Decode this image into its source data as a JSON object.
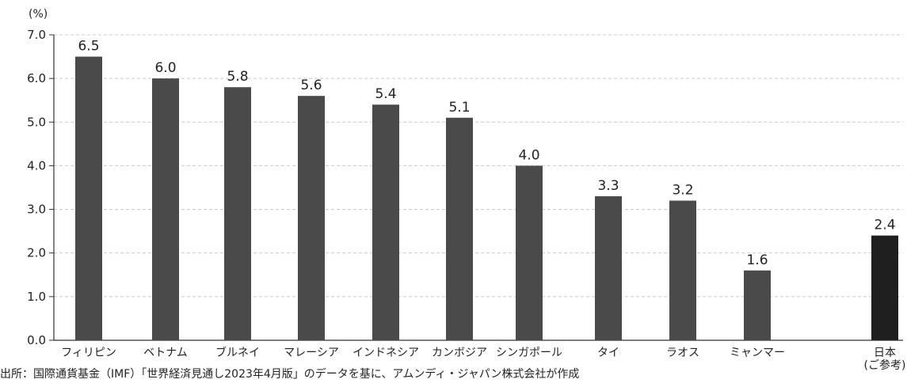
{
  "chart_data": {
    "type": "bar",
    "y_unit_label": "(%)",
    "categories": [
      "フィリピン",
      "ベトナム",
      "ブルネイ",
      "マレーシア",
      "インドネシア",
      "カンボジア",
      "シンガポール",
      "タイ",
      "ラオス",
      "ミャンマー",
      "日本\n(ご参考)"
    ],
    "values": [
      6.5,
      6.0,
      5.8,
      5.6,
      5.4,
      5.1,
      4.0,
      3.3,
      3.2,
      1.6,
      2.4
    ],
    "data_labels": [
      "6.5",
      "6.0",
      "5.8",
      "5.6",
      "5.4",
      "5.1",
      "4.0",
      "3.3",
      "3.2",
      "1.6",
      "2.4"
    ],
    "y_ticks": [
      "0.0",
      "1.0",
      "2.0",
      "3.0",
      "4.0",
      "5.0",
      "6.0",
      "7.0"
    ],
    "ylim": [
      0,
      7
    ],
    "grid": true,
    "colors": {
      "bar": "#4a4a4a",
      "highlight_bar": "#1f1f1f",
      "axis": "#333333",
      "grid": "#c8c8c8",
      "text": "#222222"
    },
    "highlight_index": 10
  },
  "source_note": "出所：国際通貨基金（IMF）「世界経済見通し2023年4月版」のデータを基に、アムンディ・ジャパン株式会社が作成"
}
